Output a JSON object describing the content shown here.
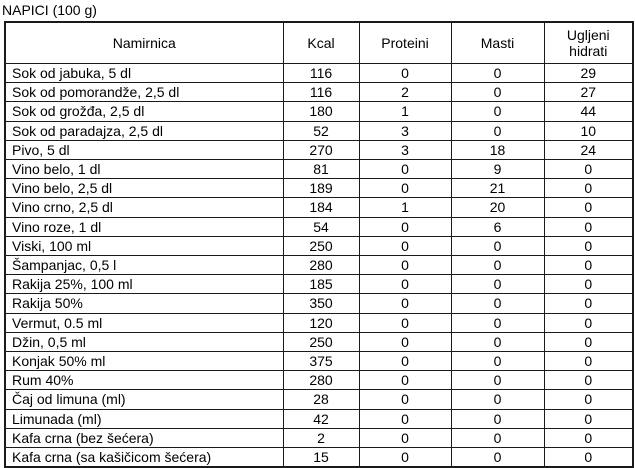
{
  "title": "NAPICI (100 g)",
  "table": {
    "columns": [
      "Namirnica",
      "Kcal",
      "Proteini",
      "Masti",
      "Ugljeni hidrati"
    ],
    "rows": [
      {
        "name": "Sok od jabuka, 5 dl",
        "kcal": "116",
        "proteini": "0",
        "masti": "0",
        "ugljeni_hidrati": "29"
      },
      {
        "name": "Sok od pomorandže, 2,5 dl",
        "kcal": "116",
        "proteini": "2",
        "masti": "0",
        "ugljeni_hidrati": "27"
      },
      {
        "name": "Sok od grožđa, 2,5 dl",
        "kcal": "180",
        "proteini": "1",
        "masti": "0",
        "ugljeni_hidrati": "44"
      },
      {
        "name": "Sok od paradajza, 2,5 dl",
        "kcal": "52",
        "proteini": "3",
        "masti": "0",
        "ugljeni_hidrati": "10"
      },
      {
        "name": "Pivo, 5 dl",
        "kcal": "270",
        "proteini": "3",
        "masti": "18",
        "ugljeni_hidrati": "24"
      },
      {
        "name": "Vino belo, 1 dl",
        "kcal": "81",
        "proteini": "0",
        "masti": "9",
        "ugljeni_hidrati": "0"
      },
      {
        "name": "Vino belo, 2,5 dl",
        "kcal": "189",
        "proteini": "0",
        "masti": "21",
        "ugljeni_hidrati": "0"
      },
      {
        "name": "Vino crno, 2,5 dl",
        "kcal": "184",
        "proteini": "1",
        "masti": "20",
        "ugljeni_hidrati": "0"
      },
      {
        "name": "Vino roze, 1 dl",
        "kcal": "54",
        "proteini": "0",
        "masti": "6",
        "ugljeni_hidrati": "0"
      },
      {
        "name": "Viski, 100 ml",
        "kcal": "250",
        "proteini": "0",
        "masti": "0",
        "ugljeni_hidrati": "0"
      },
      {
        "name": "Šampanjac, 0,5 l",
        "kcal": "280",
        "proteini": "0",
        "masti": "0",
        "ugljeni_hidrati": "0"
      },
      {
        "name": "Rakija 25%, 100 ml",
        "kcal": "185",
        "proteini": "0",
        "masti": "0",
        "ugljeni_hidrati": "0"
      },
      {
        "name": "Rakija 50%",
        "kcal": "350",
        "proteini": "0",
        "masti": "0",
        "ugljeni_hidrati": "0"
      },
      {
        "name": "Vermut, 0.5 ml",
        "kcal": "120",
        "proteini": "0",
        "masti": "0",
        "ugljeni_hidrati": "0"
      },
      {
        "name": "Džin, 0,5 ml",
        "kcal": "250",
        "proteini": "0",
        "masti": "0",
        "ugljeni_hidrati": "0"
      },
      {
        "name": "Konjak 50% ml",
        "kcal": "375",
        "proteini": "0",
        "masti": "0",
        "ugljeni_hidrati": "0"
      },
      {
        "name": "Rum 40%",
        "kcal": "280",
        "proteini": "0",
        "masti": "0",
        "ugljeni_hidrati": "0"
      },
      {
        "name": "Čaj od limuna (ml)",
        "kcal": "28",
        "proteini": "0",
        "masti": "0",
        "ugljeni_hidrati": "0"
      },
      {
        "name": "Limunada (ml)",
        "kcal": "42",
        "proteini": "0",
        "masti": "0",
        "ugljeni_hidrati": "0"
      },
      {
        "name": "Kafa crna (bez šećera)",
        "kcal": "2",
        "proteini": "0",
        "masti": "0",
        "ugljeni_hidrati": "0"
      },
      {
        "name": "Kafa crna (sa kašičicom šećera)",
        "kcal": "15",
        "proteini": "0",
        "masti": "0",
        "ugljeni_hidrati": "0"
      }
    ]
  },
  "colors": {
    "text": "#000000",
    "border": "#1a1a1a",
    "background": "#ffffff"
  }
}
